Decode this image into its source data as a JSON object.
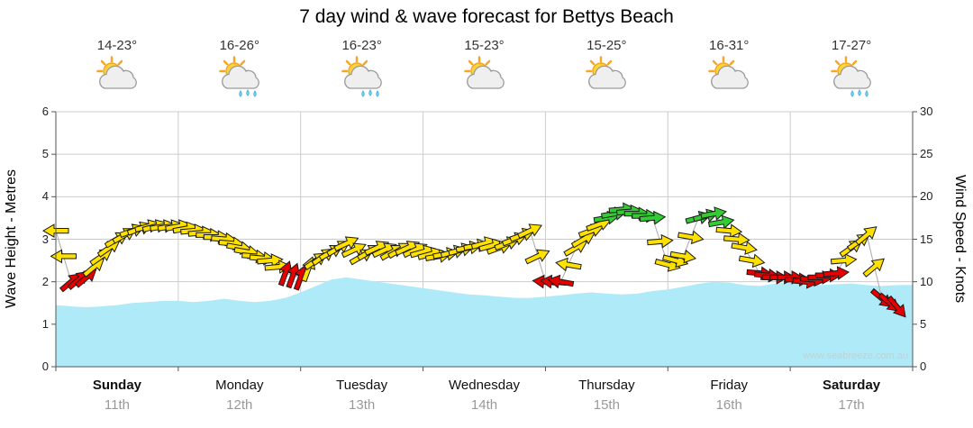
{
  "title": "7 day wind & wave forecast for Bettys Beach",
  "watermark": "www.seabreeze.com.au",
  "axes": {
    "left_label": "Wave Height - Metres",
    "right_label": "Wind Speed - Knots",
    "left_ticks": [
      0,
      1,
      2,
      3,
      4,
      5,
      6
    ],
    "right_ticks": [
      0,
      5,
      10,
      15,
      20,
      25,
      30
    ]
  },
  "days": [
    {
      "name": "Sunday",
      "date": "11th",
      "temp": "14-23°",
      "icon": "sun-cloud",
      "weekend": true
    },
    {
      "name": "Monday",
      "date": "12th",
      "temp": "16-26°",
      "icon": "sun-cloud-rain",
      "weekend": false
    },
    {
      "name": "Tuesday",
      "date": "13th",
      "temp": "16-23°",
      "icon": "sun-cloud-rain",
      "weekend": false
    },
    {
      "name": "Wednesday",
      "date": "14th",
      "temp": "15-23°",
      "icon": "sun-cloud",
      "weekend": false
    },
    {
      "name": "Thursday",
      "date": "15th",
      "temp": "15-25°",
      "icon": "sun-cloud",
      "weekend": false
    },
    {
      "name": "Friday",
      "date": "16th",
      "temp": "16-31°",
      "icon": "sun-cloud",
      "weekend": false
    },
    {
      "name": "Saturday",
      "date": "17th",
      "temp": "17-27°",
      "icon": "sun-cloud-rain",
      "weekend": true
    }
  ],
  "chart_data": {
    "type": "area",
    "title": "7 day wind & wave forecast for Bettys Beach",
    "x_unit": "hours from Sunday 00:00",
    "x_interval_hours": 3,
    "duration_hours": 168,
    "grid": true,
    "legend": "none",
    "series": [
      {
        "name": "Wave Height",
        "units": "metres",
        "axis": "left",
        "ylim": [
          0,
          6
        ],
        "values": [
          1.45,
          1.42,
          1.4,
          1.42,
          1.45,
          1.5,
          1.52,
          1.55,
          1.55,
          1.52,
          1.55,
          1.6,
          1.55,
          1.52,
          1.55,
          1.62,
          1.75,
          1.9,
          2.05,
          2.1,
          2.05,
          2.0,
          1.95,
          1.9,
          1.85,
          1.8,
          1.75,
          1.7,
          1.68,
          1.65,
          1.62,
          1.62,
          1.65,
          1.68,
          1.72,
          1.75,
          1.72,
          1.7,
          1.72,
          1.78,
          1.82,
          1.88,
          1.95,
          2.0,
          1.98,
          1.92,
          1.9,
          1.95,
          2.0,
          1.96,
          1.92,
          1.94,
          1.96,
          1.92,
          1.9,
          1.92
        ]
      },
      {
        "name": "Wind Speed",
        "units": "knots",
        "axis": "right",
        "ylim": [
          0,
          30
        ],
        "values": [
          16,
          10,
          10.5,
          13,
          15,
          16,
          16.5,
          16.5,
          16.5,
          16,
          15.5,
          15,
          14,
          13,
          12.5,
          11,
          10.5,
          12.5,
          13.5,
          14.5,
          13,
          14,
          13.5,
          14,
          13.5,
          13,
          13.5,
          14,
          14.5,
          14,
          15,
          16,
          10,
          10,
          14,
          16,
          17.5,
          18.5,
          18,
          17.5,
          12,
          13,
          17.5,
          18,
          16,
          14,
          11,
          10.5,
          10.5,
          10,
          10.5,
          11,
          14,
          15.5,
          8,
          7
        ],
        "dir_deg": [
          180,
          -40,
          -40,
          -35,
          -30,
          -20,
          -15,
          -10,
          -10,
          -5,
          0,
          5,
          10,
          5,
          -5,
          -70,
          -70,
          -35,
          -30,
          -25,
          -30,
          -25,
          -30,
          -25,
          -15,
          -10,
          -15,
          -10,
          -15,
          -20,
          -20,
          -25,
          185,
          190,
          -30,
          -20,
          -10,
          -5,
          0,
          -5,
          15,
          10,
          -15,
          -10,
          5,
          10,
          5,
          0,
          0,
          5,
          0,
          -5,
          -35,
          -40,
          40,
          50
        ]
      }
    ],
    "wind_color_rules": {
      "red_max_kt": 11,
      "green_min_kt": 17
    }
  },
  "colors": {
    "area_fill": "#aeeaf8",
    "grid": "#cccccc",
    "axis": "#555555",
    "wind_red": "#e60000",
    "wind_yellow": "#ffe100",
    "wind_green": "#33cc33",
    "arrow_outline": "#1a1a1a",
    "wind_line": "#aaaaaa",
    "title_text": "#000000",
    "temp_text": "#333333",
    "day_text": "#111111",
    "date_text": "#999999",
    "watermark_text": "#bdd3da"
  }
}
